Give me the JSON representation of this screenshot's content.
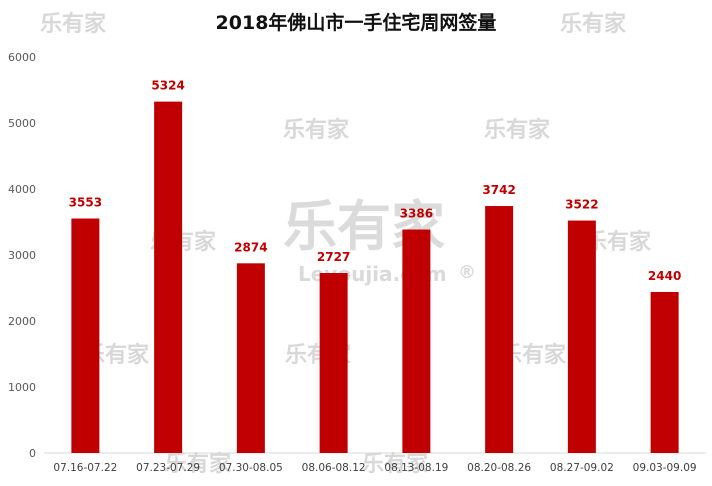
{
  "chart_data": {
    "type": "bar",
    "title": "2018年佛山市一手住宅周网签量",
    "xlabel": "",
    "ylabel": "",
    "categories": [
      "07.16-07.22",
      "07.23-07.29",
      "07.30-08.05",
      "08.06-08.12",
      "08.13-08.19",
      "08.20-08.26",
      "08.27-09.02",
      "09.03-09.09"
    ],
    "values": [
      3553,
      5324,
      2874,
      2727,
      3386,
      3742,
      3522,
      2440
    ],
    "data_labels": [
      "3553",
      "5324",
      "2874",
      "2727",
      "3386",
      "3742",
      "3522",
      "2440"
    ],
    "ylim": [
      0,
      6000
    ],
    "yticks": [
      "0",
      "1000",
      "2000",
      "3000",
      "4000",
      "5000",
      "6000"
    ],
    "grid": false,
    "legend": "none",
    "bar_color": "#c00000",
    "label_color": "#c00000"
  },
  "watermark": {
    "brand": "乐有家",
    "site": "Leyoujia.com",
    "registered": "®"
  }
}
